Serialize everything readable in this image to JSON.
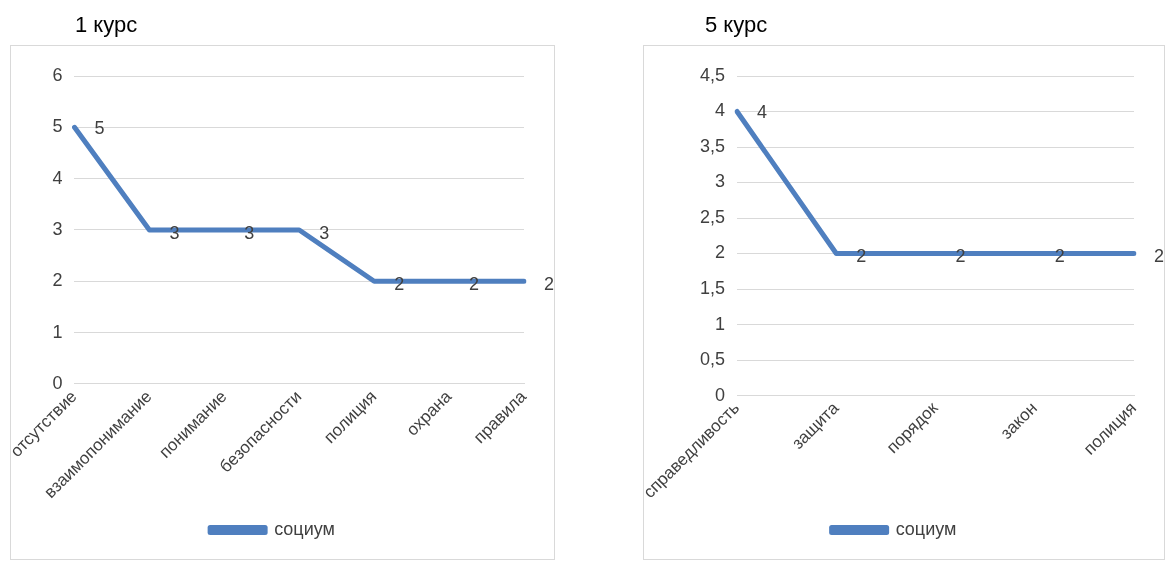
{
  "chart_data": [
    {
      "type": "line",
      "title": "1 курс",
      "categories": [
        "отсутствие",
        "взаимопонимание",
        "понимание",
        "безопасности",
        "полиция",
        "охрана",
        "правила"
      ],
      "series": [
        {
          "name": "социум",
          "color": "#4f7fbf",
          "values": [
            5,
            3,
            3,
            3,
            2,
            2,
            2
          ]
        }
      ],
      "ylim": [
        0,
        6
      ],
      "yticks": [
        0,
        1,
        2,
        3,
        4,
        5,
        6
      ],
      "grid": "y",
      "legend": "bottom",
      "data_labels": true,
      "marker": "none"
    },
    {
      "type": "line",
      "title": "5 курс",
      "categories": [
        "справедливость",
        "защита",
        "порядок",
        "закон",
        "полиция"
      ],
      "series": [
        {
          "name": "социум",
          "color": "#4f7fbf",
          "values": [
            4,
            2,
            2,
            2,
            2
          ]
        }
      ],
      "ylim": [
        0,
        4.5
      ],
      "yticks": [
        0,
        {
          "value": 0.5,
          "label": "0,5"
        },
        1,
        {
          "value": 1.5,
          "label": "1,5"
        },
        2,
        {
          "value": 2.5,
          "label": "2,5"
        },
        3,
        {
          "value": 3.5,
          "label": "3,5"
        },
        4,
        {
          "value": 4.5,
          "label": "4,5"
        }
      ],
      "grid": "y",
      "legend": "bottom",
      "data_labels": true,
      "marker": "none"
    }
  ]
}
